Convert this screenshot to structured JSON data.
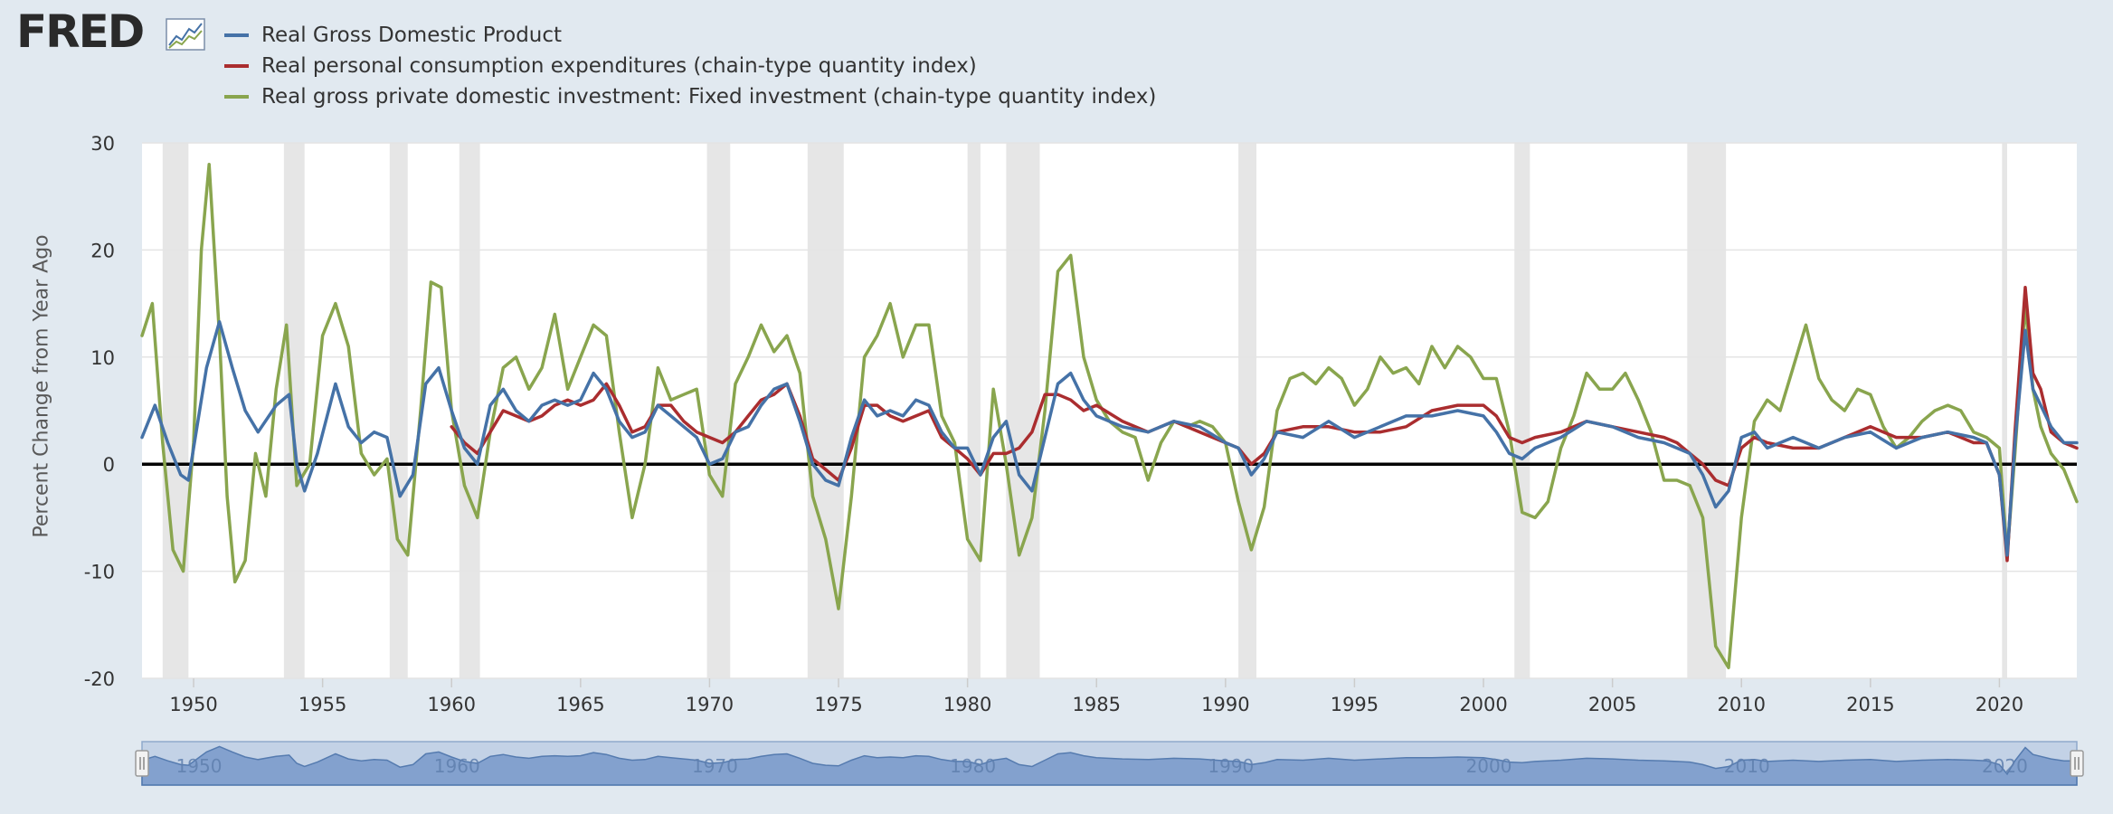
{
  "header": {
    "brand": "FRED",
    "logo_icon": "fred-chart-logo-icon"
  },
  "chart_data": {
    "type": "line",
    "ylabel": "Percent Change from Year Ago",
    "xlim": [
      1948.0,
      2023.0
    ],
    "ylim": [
      -20,
      30
    ],
    "y_ticks": [
      30,
      20,
      10,
      0,
      -10,
      -20
    ],
    "y_tick_labels": [
      "30",
      "20",
      "10",
      "0",
      "-10",
      "-20"
    ],
    "x_ticks": [
      1950,
      1955,
      1960,
      1965,
      1970,
      1975,
      1980,
      1985,
      1990,
      1995,
      2000,
      2005,
      2010,
      2015,
      2020
    ],
    "x_tick_labels": [
      "1950",
      "1955",
      "1960",
      "1965",
      "1970",
      "1975",
      "1980",
      "1985",
      "1990",
      "1995",
      "2000",
      "2005",
      "2010",
      "2015",
      "2020"
    ],
    "zero_line": true,
    "recessions": [
      [
        1948.8,
        1949.8
      ],
      [
        1953.5,
        1954.3
      ],
      [
        1957.6,
        1958.3
      ],
      [
        1960.3,
        1961.1
      ],
      [
        1969.9,
        1970.8
      ],
      [
        1973.8,
        1975.2
      ],
      [
        1980.0,
        1980.5
      ],
      [
        1981.5,
        1982.8
      ],
      [
        1990.5,
        1991.2
      ],
      [
        2001.2,
        2001.8
      ],
      [
        2007.9,
        2009.4
      ],
      [
        2020.1,
        2020.3
      ]
    ],
    "navigator": {
      "labels": [
        "1950",
        "1960",
        "1970",
        "1980",
        "1990",
        "2000",
        "2010",
        "2020"
      ]
    },
    "series": [
      {
        "name": "Real Gross Domestic Product",
        "color": "#4572a7",
        "x": [
          1948.0,
          1948.5,
          1949.0,
          1949.5,
          1949.8,
          1950.5,
          1951.0,
          1951.5,
          1952.0,
          1952.5,
          1953.2,
          1953.7,
          1954.0,
          1954.3,
          1954.8,
          1955.5,
          1956.0,
          1956.5,
          1957.0,
          1957.5,
          1958.0,
          1958.5,
          1959.0,
          1959.5,
          1960.0,
          1960.5,
          1961.0,
          1961.5,
          1962.0,
          1962.5,
          1963.0,
          1963.5,
          1964.0,
          1964.5,
          1965.0,
          1965.5,
          1966.0,
          1966.5,
          1967.0,
          1967.5,
          1968.0,
          1968.5,
          1969.0,
          1969.5,
          1970.0,
          1970.5,
          1971.0,
          1971.5,
          1972.0,
          1972.5,
          1973.0,
          1973.5,
          1974.0,
          1974.5,
          1975.0,
          1975.5,
          1976.0,
          1976.5,
          1977.0,
          1977.5,
          1978.0,
          1978.5,
          1979.0,
          1979.5,
          1980.0,
          1980.5,
          1981.0,
          1981.5,
          1982.0,
          1982.5,
          1983.0,
          1983.5,
          1984.0,
          1984.5,
          1985.0,
          1986.0,
          1987.0,
          1988.0,
          1989.0,
          1990.0,
          1990.5,
          1991.0,
          1991.5,
          1992.0,
          1993.0,
          1994.0,
          1995.0,
          1996.0,
          1997.0,
          1998.0,
          1999.0,
          2000.0,
          2000.5,
          2001.0,
          2001.5,
          2002.0,
          2003.0,
          2004.0,
          2005.0,
          2006.0,
          2007.0,
          2007.5,
          2008.0,
          2008.5,
          2009.0,
          2009.5,
          2010.0,
          2010.5,
          2011.0,
          2012.0,
          2013.0,
          2014.0,
          2015.0,
          2016.0,
          2017.0,
          2018.0,
          2019.0,
          2019.5,
          2020.0,
          2020.3,
          2020.6,
          2021.0,
          2021.3,
          2021.6,
          2022.0,
          2022.5,
          2023.0
        ],
        "values": [
          2.5,
          5.5,
          2.0,
          -1.0,
          -1.5,
          9.0,
          13.3,
          9.0,
          5.0,
          3.0,
          5.5,
          6.5,
          0.0,
          -2.5,
          1.0,
          7.5,
          3.5,
          2.0,
          3.0,
          2.5,
          -3.0,
          -1.0,
          7.5,
          9.0,
          5.0,
          1.5,
          0.0,
          5.5,
          7.0,
          5.0,
          4.0,
          5.5,
          6.0,
          5.5,
          6.0,
          8.5,
          7.0,
          4.0,
          2.5,
          3.0,
          5.5,
          4.5,
          3.5,
          2.5,
          0.0,
          0.5,
          3.0,
          3.5,
          5.5,
          7.0,
          7.5,
          4.0,
          0.0,
          -1.5,
          -2.0,
          2.5,
          6.0,
          4.5,
          5.0,
          4.5,
          6.0,
          5.5,
          3.0,
          1.5,
          1.5,
          -1.0,
          2.5,
          4.0,
          -1.0,
          -2.5,
          2.5,
          7.5,
          8.5,
          6.0,
          4.5,
          3.5,
          3.0,
          4.0,
          3.5,
          2.0,
          1.5,
          -1.0,
          0.5,
          3.0,
          2.5,
          4.0,
          2.5,
          3.5,
          4.5,
          4.5,
          5.0,
          4.5,
          3.0,
          1.0,
          0.5,
          1.5,
          2.5,
          4.0,
          3.5,
          2.5,
          2.0,
          1.5,
          1.0,
          -1.0,
          -4.0,
          -2.5,
          2.5,
          3.0,
          1.5,
          2.5,
          1.5,
          2.5,
          3.0,
          1.5,
          2.5,
          3.0,
          2.5,
          2.0,
          -1.0,
          -8.5,
          2.0,
          12.5,
          7.0,
          5.5,
          3.5,
          2.0,
          2.0
        ]
      },
      {
        "name": "Real personal consumption expenditures (chain-type quantity index)",
        "color": "#aa2d2f",
        "x": [
          1960.0,
          1960.5,
          1961.0,
          1961.5,
          1962.0,
          1962.5,
          1963.0,
          1963.5,
          1964.0,
          1964.5,
          1965.0,
          1965.5,
          1966.0,
          1966.5,
          1967.0,
          1967.5,
          1968.0,
          1968.5,
          1969.0,
          1969.5,
          1970.0,
          1970.5,
          1971.0,
          1971.5,
          1972.0,
          1972.5,
          1973.0,
          1973.5,
          1974.0,
          1974.5,
          1975.0,
          1975.5,
          1976.0,
          1976.5,
          1977.0,
          1977.5,
          1978.0,
          1978.5,
          1979.0,
          1979.5,
          1980.0,
          1980.5,
          1981.0,
          1981.5,
          1982.0,
          1982.5,
          1983.0,
          1983.5,
          1984.0,
          1984.5,
          1985.0,
          1986.0,
          1987.0,
          1988.0,
          1989.0,
          1990.0,
          1990.5,
          1991.0,
          1991.5,
          1992.0,
          1993.0,
          1994.0,
          1995.0,
          1996.0,
          1997.0,
          1998.0,
          1999.0,
          2000.0,
          2000.5,
          2001.0,
          2001.5,
          2002.0,
          2003.0,
          2004.0,
          2005.0,
          2006.0,
          2007.0,
          2007.5,
          2008.0,
          2008.5,
          2009.0,
          2009.5,
          2010.0,
          2010.5,
          2011.0,
          2012.0,
          2013.0,
          2014.0,
          2015.0,
          2016.0,
          2017.0,
          2018.0,
          2019.0,
          2019.5,
          2020.0,
          2020.3,
          2020.6,
          2021.0,
          2021.3,
          2021.6,
          2022.0,
          2022.5,
          2023.0
        ],
        "values": [
          3.5,
          2.0,
          1.0,
          3.0,
          5.0,
          4.5,
          4.0,
          4.5,
          5.5,
          6.0,
          5.5,
          6.0,
          7.5,
          5.5,
          3.0,
          3.5,
          5.5,
          5.5,
          4.0,
          3.0,
          2.5,
          2.0,
          3.0,
          4.5,
          6.0,
          6.5,
          7.5,
          4.5,
          0.5,
          -0.5,
          -1.5,
          1.5,
          5.5,
          5.5,
          4.5,
          4.0,
          4.5,
          5.0,
          2.5,
          1.5,
          0.5,
          -1.0,
          1.0,
          1.0,
          1.5,
          3.0,
          6.5,
          6.5,
          6.0,
          5.0,
          5.5,
          4.0,
          3.0,
          4.0,
          3.0,
          2.0,
          1.5,
          0.0,
          1.0,
          3.0,
          3.5,
          3.5,
          3.0,
          3.0,
          3.5,
          5.0,
          5.5,
          5.5,
          4.5,
          2.5,
          2.0,
          2.5,
          3.0,
          4.0,
          3.5,
          3.0,
          2.5,
          2.0,
          1.0,
          0.0,
          -1.5,
          -2.0,
          1.5,
          2.5,
          2.0,
          1.5,
          1.5,
          2.5,
          3.5,
          2.5,
          2.5,
          3.0,
          2.0,
          2.0,
          -1.0,
          -9.0,
          3.0,
          16.5,
          8.5,
          7.0,
          3.0,
          2.0,
          1.5
        ]
      },
      {
        "name": "Real gross private domestic investment: Fixed investment (chain-type quantity index)",
        "color": "#89a54e",
        "x": [
          1948.0,
          1948.4,
          1948.8,
          1949.2,
          1949.6,
          1950.0,
          1950.3,
          1950.6,
          1951.0,
          1951.3,
          1951.6,
          1952.0,
          1952.4,
          1952.8,
          1953.2,
          1953.6,
          1954.0,
          1954.5,
          1955.0,
          1955.5,
          1956.0,
          1956.5,
          1957.0,
          1957.5,
          1957.9,
          1958.3,
          1958.8,
          1959.2,
          1959.6,
          1960.0,
          1960.5,
          1961.0,
          1961.5,
          1962.0,
          1962.5,
          1963.0,
          1963.5,
          1964.0,
          1964.5,
          1965.0,
          1965.5,
          1966.0,
          1966.5,
          1967.0,
          1967.5,
          1968.0,
          1968.5,
          1969.0,
          1969.5,
          1970.0,
          1970.5,
          1971.0,
          1971.5,
          1972.0,
          1972.5,
          1973.0,
          1973.5,
          1974.0,
          1974.5,
          1975.0,
          1975.5,
          1976.0,
          1976.5,
          1977.0,
          1977.5,
          1978.0,
          1978.5,
          1979.0,
          1979.5,
          1980.0,
          1980.5,
          1981.0,
          1981.5,
          1982.0,
          1982.5,
          1983.0,
          1983.5,
          1984.0,
          1984.5,
          1985.0,
          1985.5,
          1986.0,
          1986.5,
          1987.0,
          1987.5,
          1988.0,
          1988.5,
          1989.0,
          1989.5,
          1990.0,
          1990.5,
          1991.0,
          1991.5,
          1992.0,
          1992.5,
          1993.0,
          1993.5,
          1994.0,
          1994.5,
          1995.0,
          1995.5,
          1996.0,
          1996.5,
          1997.0,
          1997.5,
          1998.0,
          1998.5,
          1999.0,
          1999.5,
          2000.0,
          2000.5,
          2001.0,
          2001.5,
          2002.0,
          2002.5,
          2003.0,
          2003.5,
          2004.0,
          2004.5,
          2005.0,
          2005.5,
          2006.0,
          2006.5,
          2007.0,
          2007.5,
          2008.0,
          2008.5,
          2009.0,
          2009.5,
          2010.0,
          2010.5,
          2011.0,
          2011.5,
          2012.0,
          2012.5,
          2013.0,
          2013.5,
          2014.0,
          2014.5,
          2015.0,
          2015.5,
          2016.0,
          2016.5,
          2017.0,
          2017.5,
          2018.0,
          2018.5,
          2019.0,
          2019.5,
          2020.0,
          2020.3,
          2020.6,
          2021.0,
          2021.3,
          2021.6,
          2022.0,
          2022.5,
          2023.0
        ],
        "values": [
          12.0,
          15.0,
          2.0,
          -8.0,
          -10.0,
          2.0,
          20.0,
          28.0,
          12.0,
          -3.0,
          -11.0,
          -9.0,
          1.0,
          -3.0,
          7.0,
          13.0,
          -2.0,
          0.0,
          12.0,
          15.0,
          11.0,
          1.0,
          -1.0,
          0.5,
          -7.0,
          -8.5,
          5.0,
          17.0,
          16.5,
          5.0,
          -2.0,
          -5.0,
          3.0,
          9.0,
          10.0,
          7.0,
          9.0,
          14.0,
          7.0,
          10.0,
          13.0,
          12.0,
          3.0,
          -5.0,
          0.0,
          9.0,
          6.0,
          6.5,
          7.0,
          -1.0,
          -3.0,
          7.5,
          10.0,
          13.0,
          10.5,
          12.0,
          8.5,
          -3.0,
          -7.0,
          -13.5,
          -3.0,
          10.0,
          12.0,
          15.0,
          10.0,
          13.0,
          13.0,
          4.5,
          2.0,
          -7.0,
          -9.0,
          7.0,
          0.0,
          -8.5,
          -5.0,
          5.0,
          18.0,
          19.5,
          10.0,
          6.0,
          4.0,
          3.0,
          2.5,
          -1.5,
          2.0,
          4.0,
          3.5,
          4.0,
          3.5,
          2.0,
          -3.5,
          -8.0,
          -4.0,
          5.0,
          8.0,
          8.5,
          7.5,
          9.0,
          8.0,
          5.5,
          7.0,
          10.0,
          8.5,
          9.0,
          7.5,
          11.0,
          9.0,
          11.0,
          10.0,
          8.0,
          8.0,
          3.0,
          -4.5,
          -5.0,
          -3.5,
          1.5,
          4.5,
          8.5,
          7.0,
          7.0,
          8.5,
          6.0,
          3.0,
          -1.5,
          -1.5,
          -2.0,
          -5.0,
          -17.0,
          -19.0,
          -5.0,
          4.0,
          6.0,
          5.0,
          9.0,
          13.0,
          8.0,
          6.0,
          5.0,
          7.0,
          6.5,
          3.5,
          1.5,
          2.5,
          4.0,
          5.0,
          5.5,
          5.0,
          3.0,
          2.5,
          1.5,
          -8.5,
          1.0,
          15.0,
          7.0,
          3.5,
          1.0,
          -0.5,
          -3.5
        ]
      }
    ]
  }
}
